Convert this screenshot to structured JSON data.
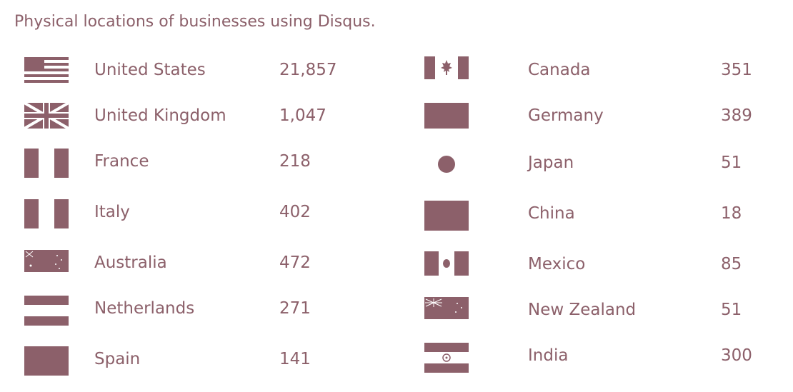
{
  "title": "Physical locations of businesses using Disqus.",
  "accent_color": "#8c606a",
  "left_column": [
    {
      "country": "United States",
      "count": "21,857",
      "flag_icon": "us-flag-icon"
    },
    {
      "country": "United Kingdom",
      "count": "1,047",
      "flag_icon": "uk-flag-icon"
    },
    {
      "country": "France",
      "count": "218",
      "flag_icon": "france-flag-icon"
    },
    {
      "country": "Italy",
      "count": "402",
      "flag_icon": "italy-flag-icon"
    },
    {
      "country": "Australia",
      "count": "472",
      "flag_icon": "australia-flag-icon"
    },
    {
      "country": "Netherlands",
      "count": "271",
      "flag_icon": "netherlands-flag-icon"
    },
    {
      "country": "Spain",
      "count": "141",
      "flag_icon": "spain-flag-icon"
    }
  ],
  "right_column": [
    {
      "country": "Canada",
      "count": "351",
      "flag_icon": "canada-flag-icon"
    },
    {
      "country": "Germany",
      "count": "389",
      "flag_icon": "germany-flag-icon"
    },
    {
      "country": "Japan",
      "count": "51",
      "flag_icon": "japan-flag-icon"
    },
    {
      "country": "China",
      "count": "18",
      "flag_icon": "china-flag-icon"
    },
    {
      "country": "Mexico",
      "count": "85",
      "flag_icon": "mexico-flag-icon"
    },
    {
      "country": "New Zealand",
      "count": "51",
      "flag_icon": "new-zealand-flag-icon"
    },
    {
      "country": "India",
      "count": "300",
      "flag_icon": "india-flag-icon"
    }
  ]
}
